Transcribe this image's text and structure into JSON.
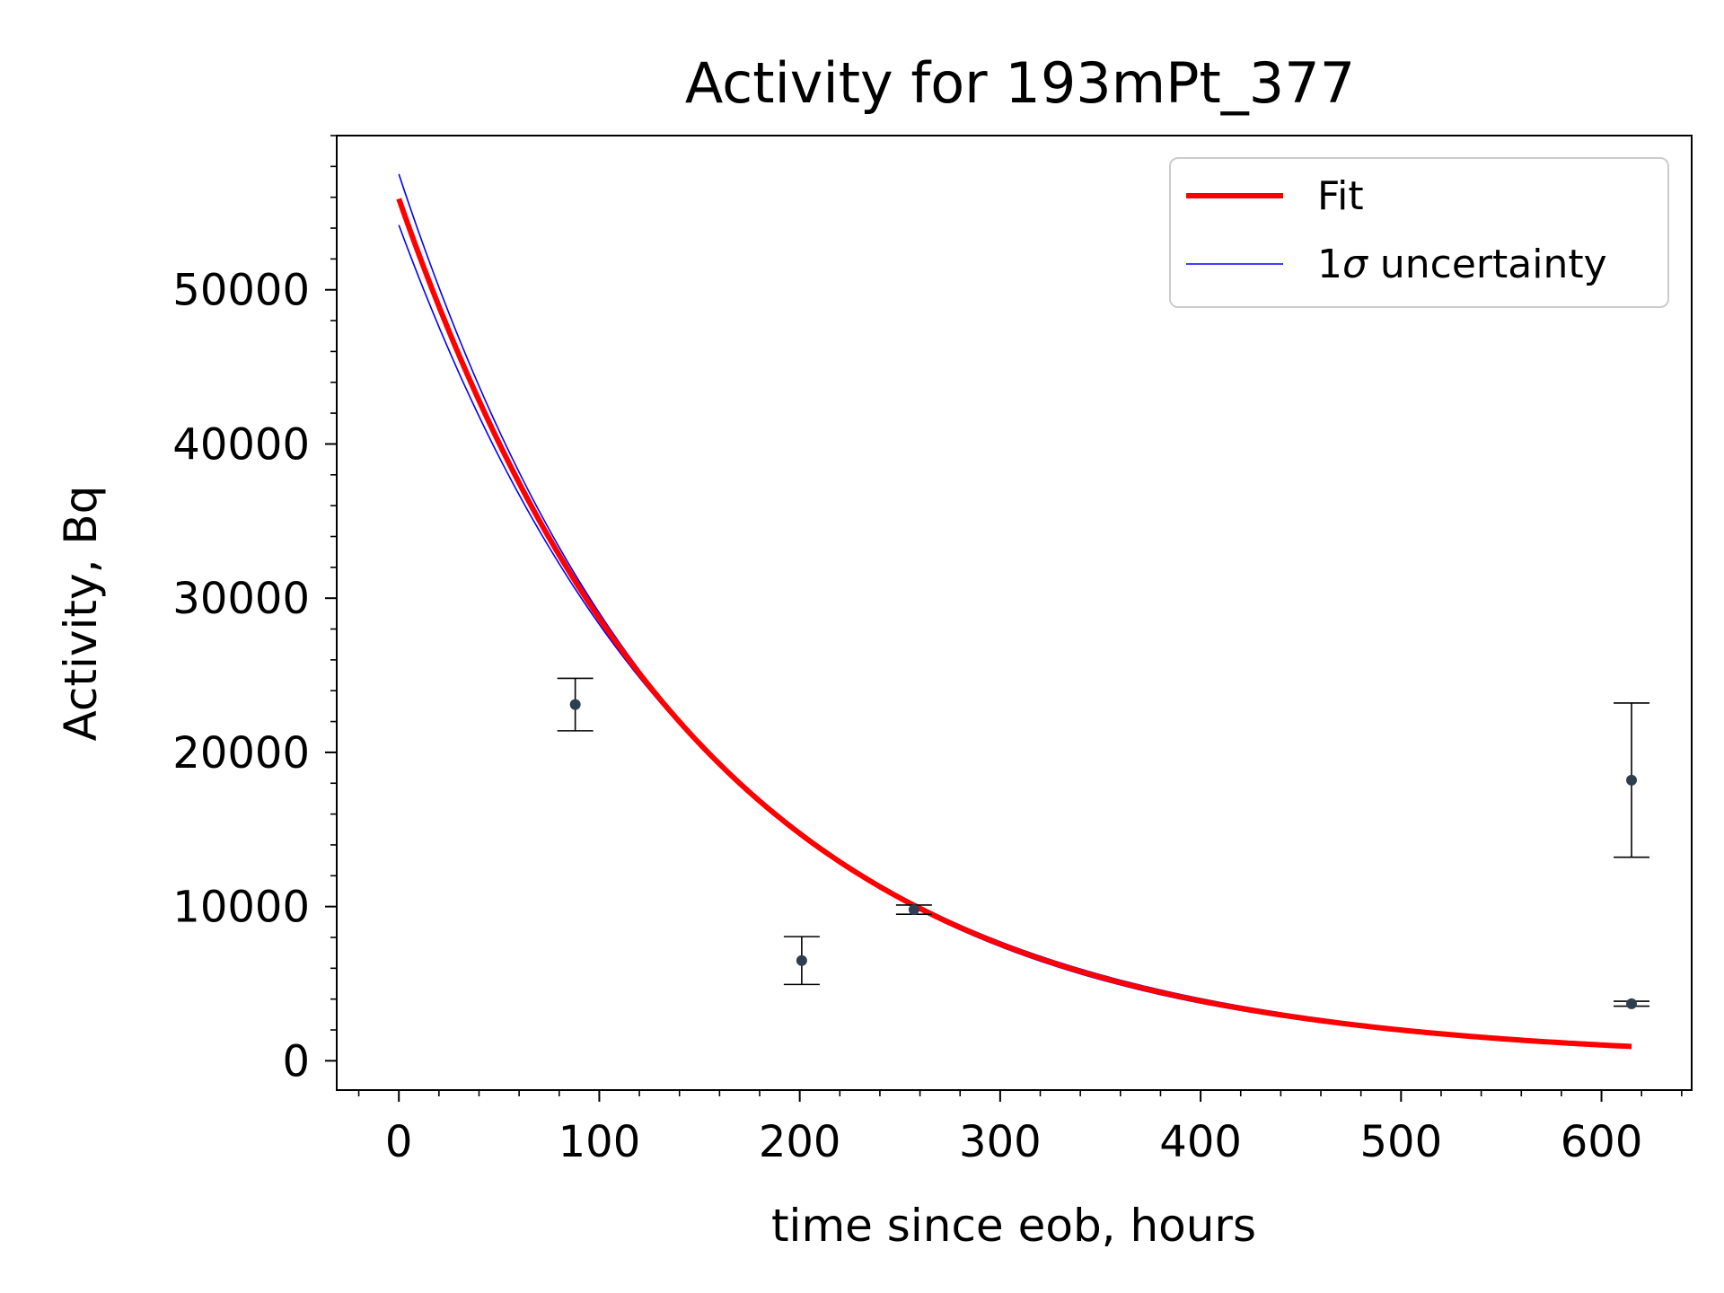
{
  "chart_data": {
    "type": "scatter",
    "title": "Activity for 193mPt_377",
    "xlabel": "time since eob, hours",
    "ylabel": "Activity, Bq",
    "xlim": [
      -31,
      645
    ],
    "ylim": [
      -1900,
      60000
    ],
    "x_ticks": [
      0,
      100,
      200,
      300,
      400,
      500,
      600
    ],
    "y_ticks": [
      0,
      10000,
      20000,
      30000,
      40000,
      50000
    ],
    "x_minor_step": 20,
    "y_minor_step": 2000,
    "grid": false,
    "legend_position": "top-right",
    "colors": {
      "fit": "#ff0000",
      "uncertainty": "#0000ff",
      "points": "#2c3e50",
      "errorbars": "#000000"
    },
    "series": [
      {
        "name": "Fit",
        "kind": "exponential_decay",
        "a0": 55900,
        "half_life_hours": 104,
        "x_range": [
          0,
          615
        ]
      },
      {
        "name": "1σ uncertainty",
        "kind": "exponential_band",
        "upper_a0": 57500,
        "upper_half_life_hours": 101.5,
        "lower_a0": 54200,
        "lower_half_life_hours": 106.7,
        "x_range": [
          0,
          615
        ]
      },
      {
        "kind": "measurements",
        "points": [
          {
            "x": 88,
            "y": 23100,
            "err": 1700
          },
          {
            "x": 201,
            "y": 6500,
            "err": 1550
          },
          {
            "x": 257,
            "y": 9800,
            "err": 300
          },
          {
            "x": 615,
            "y": 18200,
            "err": 5000
          },
          {
            "x": 615,
            "y": 3700,
            "err": 160
          }
        ]
      }
    ],
    "legend": {
      "fit_label": "Fit",
      "uncertainty_label_prefix": "1",
      "uncertainty_label_symbol": "σ",
      "uncertainty_label_suffix": " uncertainty"
    }
  }
}
